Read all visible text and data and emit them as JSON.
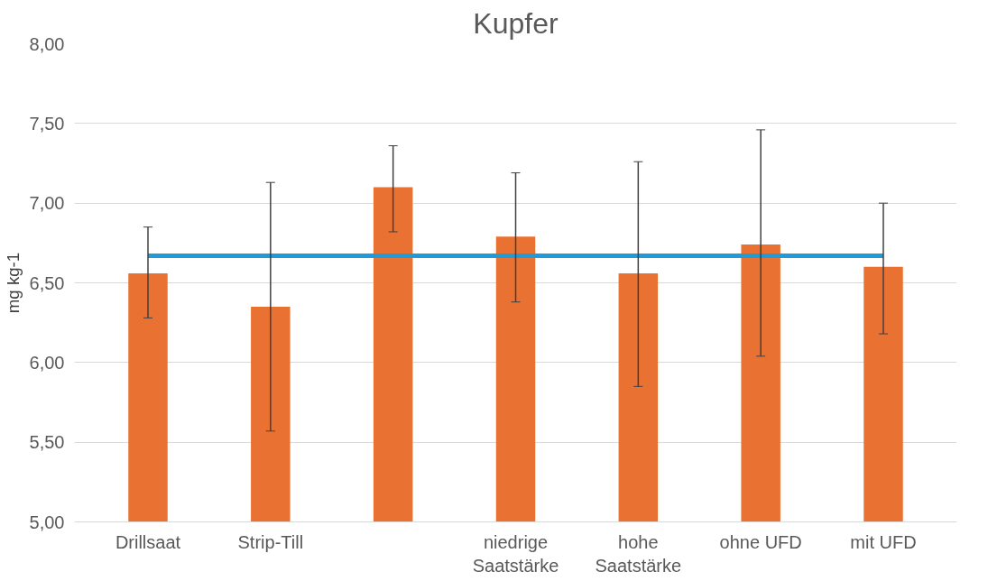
{
  "chart_data": {
    "type": "bar",
    "title": "Kupfer",
    "ylabel": "mg kg-1",
    "categories": [
      "Drillsaat",
      "Strip-Till",
      null,
      "niedrige Saatstärke",
      "hohe Saatstärke",
      "ohne UFD",
      "mit UFD"
    ],
    "series": [
      {
        "color": "#e97132",
        "values": [
          6.56,
          6.35,
          7.1,
          6.79,
          6.56,
          6.74,
          6.6
        ],
        "errors": [
          [
            6.28,
            6.85
          ],
          [
            5.57,
            7.13
          ],
          [
            6.82,
            7.36
          ],
          [
            6.38,
            7.19
          ],
          [
            5.85,
            7.26
          ],
          [
            6.04,
            7.46
          ],
          [
            6.18,
            7.0
          ]
        ]
      },
      {
        "type": "line",
        "color": "#1f9bd7",
        "values": [
          6.67,
          6.67,
          6.67,
          6.67,
          6.67,
          6.67,
          6.67
        ]
      }
    ],
    "ylim": [
      5.0,
      8.0
    ],
    "yticks": [
      {
        "value": 5.0,
        "label": "5,00"
      },
      {
        "value": 5.5,
        "label": "5,50"
      },
      {
        "value": 6.0,
        "label": "6,00"
      },
      {
        "value": 6.5,
        "label": "6,50"
      },
      {
        "value": 7.0,
        "label": "7,00"
      },
      {
        "value": 7.5,
        "label": "7,50"
      },
      {
        "value": 8.0,
        "label": "8,00"
      }
    ],
    "grid": "y"
  }
}
